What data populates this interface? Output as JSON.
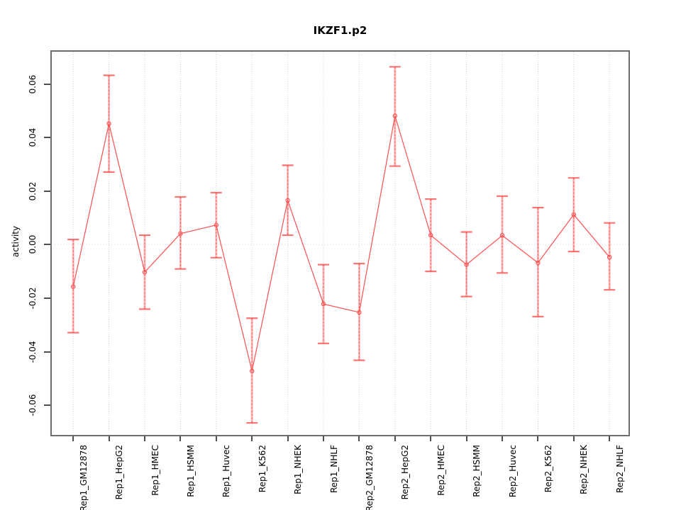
{
  "title": "IKZF1.p2",
  "chart_data": {
    "type": "line",
    "title": "IKZF1.p2",
    "xlabel": "",
    "ylabel": "activity",
    "ylim": [
      -0.072,
      0.072
    ],
    "yticks": [
      0.06,
      0.04,
      0.02,
      0.0,
      -0.02,
      -0.04,
      -0.06
    ],
    "grid": "dotted vertical gridline at each category; dotted horizontal line at y=0",
    "legend_position": "none",
    "marker": "open-circle",
    "error_bars": true,
    "colors": {
      "series": "#ff5050",
      "error_band": "#fc8b8b",
      "gridline": "#d2d2d2",
      "frame": "#6e6e6e",
      "text": "#000000"
    },
    "categories": [
      "Rep1_GM12878",
      "Rep1_HepG2",
      "Rep1_HMEC",
      "Rep1_HSMM",
      "Rep1_Huvec",
      "Rep1_K562",
      "Rep1_NHEK",
      "Rep1_NHLF",
      "Rep2_GM12878",
      "Rep2_HepG2",
      "Rep2_HMEC",
      "Rep2_HSMM",
      "Rep2_Huvec",
      "Rep2_K562",
      "Rep2_NHEK",
      "Rep2_NHLF"
    ],
    "series": [
      {
        "name": "activity",
        "values": [
          -0.0157,
          0.0452,
          -0.0103,
          0.0041,
          0.0073,
          -0.0472,
          0.0165,
          -0.0222,
          -0.0253,
          0.0481,
          0.0035,
          -0.0075,
          0.0034,
          -0.0068,
          0.0112,
          -0.0047
        ],
        "err_high": [
          0.0019,
          0.0632,
          0.0035,
          0.0178,
          0.0194,
          -0.0275,
          0.0296,
          -0.0075,
          -0.0071,
          0.0664,
          0.017,
          0.0047,
          0.0181,
          0.0138,
          0.0249,
          0.0081
        ],
        "err_low": [
          -0.0329,
          0.0271,
          -0.0241,
          -0.0091,
          -0.0049,
          -0.0666,
          0.0035,
          -0.0369,
          -0.0432,
          0.0293,
          -0.01,
          -0.0194,
          -0.0106,
          -0.0269,
          -0.0026,
          -0.0169
        ]
      }
    ]
  }
}
